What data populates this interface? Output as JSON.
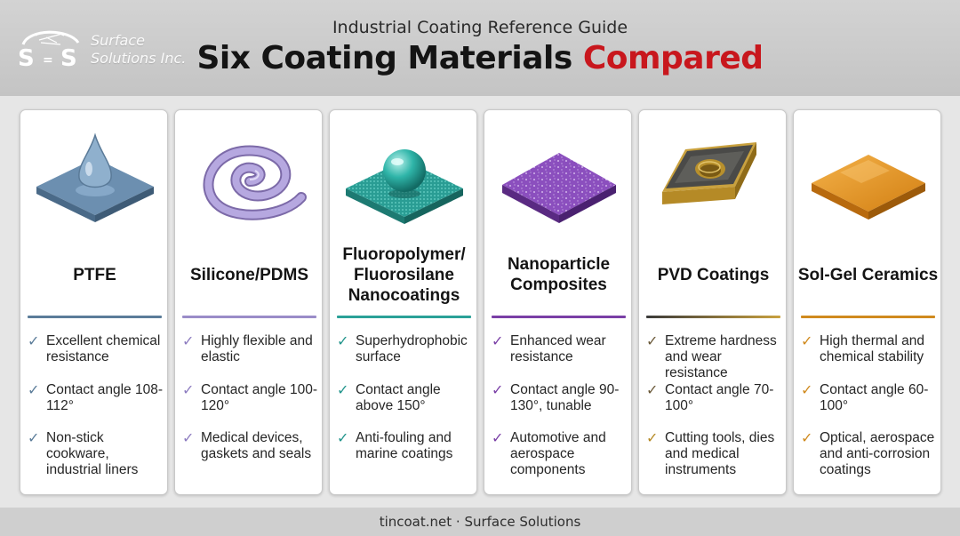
{
  "logo": {
    "line1": "Surface",
    "line2": "Solutions Inc.",
    "icon": "ss-logo-icon"
  },
  "header": {
    "subtitle": "Industrial Coating Reference Guide",
    "title_main": "Six Coating Materials",
    "title_accent": "Compared",
    "accent_color": "#c8171d"
  },
  "cards": [
    {
      "title": "PTFE",
      "icon": "water-droplet-icon",
      "color": "#5b7c99",
      "features": [
        "Excellent chemical resistance",
        "Contact angle 108-112°",
        "Non-stick cookware, industrial liners"
      ]
    },
    {
      "title": "Silicone/PDMS",
      "icon": "spiral-tube-icon",
      "color": "#9a8cc8",
      "features": [
        "Highly flexible and elastic",
        "Contact angle 100-120°",
        "Medical devices, gaskets and seals"
      ]
    },
    {
      "title": "Fluoropolymer/ Fluorosilane Nanocoatings",
      "icon": "sphere-on-surface-icon",
      "color": "#2aa198",
      "features": [
        "Superhydrophobic surface",
        "Contact angle above 150°",
        "Anti-fouling and marine coatings"
      ]
    },
    {
      "title": "Nanoparticle Composites",
      "icon": "speckled-tile-icon",
      "color": "#7a3fa6",
      "features": [
        "Enhanced wear resistance",
        "Contact angle 90-130°, tunable",
        "Automotive and aerospace components"
      ]
    },
    {
      "title": "PVD Coatings",
      "icon": "cutting-insert-icon",
      "color": "#6b5a3a",
      "features": [
        "Extreme hardness and wear resistance",
        "Contact angle 70-100°",
        "Cutting tools, dies and medical instruments"
      ]
    },
    {
      "title": "Sol-Gel Ceramics",
      "icon": "ceramic-tile-icon",
      "color": "#d08a1e",
      "features": [
        "High thermal and chemical stability",
        "Contact angle 60-100°",
        "Optical, aerospace and anti-corrosion coatings"
      ]
    }
  ],
  "footer": {
    "text": "tincoat.net · Surface Solutions"
  }
}
